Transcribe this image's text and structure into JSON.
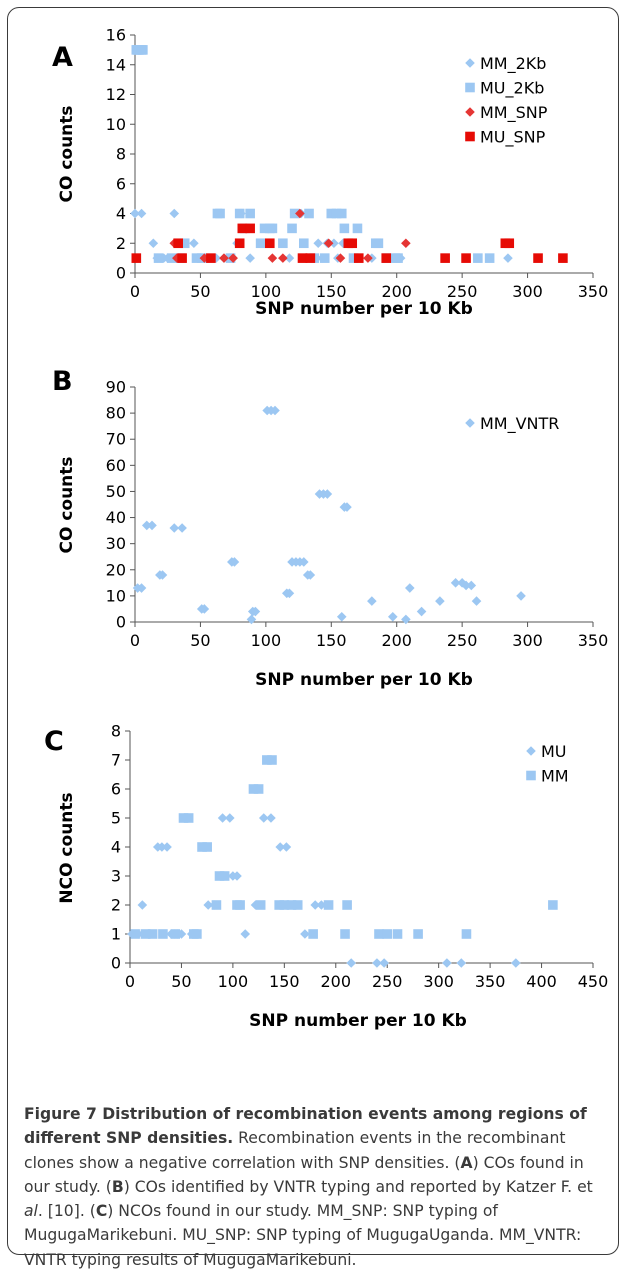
{
  "chart_data": [
    {
      "panel_label": "A",
      "type": "scatter",
      "xlabel": "SNP number per 10 Kb",
      "ylabel": "CO counts",
      "xlim": [
        0,
        350
      ],
      "ylim": [
        0,
        16
      ],
      "xticks": [
        0,
        50,
        100,
        150,
        200,
        250,
        300,
        350
      ],
      "yticks": [
        0,
        2,
        4,
        6,
        8,
        10,
        12,
        14,
        16
      ],
      "legend_position": "top-right",
      "series": [
        {
          "name": "MM_2Kb",
          "marker": "diamond",
          "color": "#9cc7f2",
          "points": [
            [
              0,
              4
            ],
            [
              5,
              4
            ],
            [
              14,
              2
            ],
            [
              17,
              1
            ],
            [
              22,
              1
            ],
            [
              25,
              1
            ],
            [
              30,
              4
            ],
            [
              45,
              2
            ],
            [
              55,
              1
            ],
            [
              62,
              1
            ],
            [
              68,
              1
            ],
            [
              72,
              1
            ],
            [
              78,
              2
            ],
            [
              81,
              4
            ],
            [
              88,
              1
            ],
            [
              118,
              1
            ],
            [
              127,
              4
            ],
            [
              140,
              2
            ],
            [
              143,
              1
            ],
            [
              147,
              2
            ],
            [
              152,
              2
            ],
            [
              155,
              1
            ],
            [
              159,
              2
            ],
            [
              162,
              2
            ],
            [
              168,
              1
            ],
            [
              181,
              1
            ],
            [
              197,
              1
            ],
            [
              203,
              1
            ],
            [
              285,
              1
            ]
          ]
        },
        {
          "name": "MU_2Kb",
          "marker": "square",
          "color": "#9cc7f2",
          "points": [
            [
              1,
              15
            ],
            [
              2,
              15
            ],
            [
              3,
              15
            ],
            [
              5,
              15
            ],
            [
              6,
              15
            ],
            [
              18,
              1
            ],
            [
              28,
              1
            ],
            [
              35,
              1
            ],
            [
              38,
              2
            ],
            [
              47,
              1
            ],
            [
              51,
              1
            ],
            [
              63,
              4
            ],
            [
              65,
              4
            ],
            [
              73,
              1
            ],
            [
              80,
              4
            ],
            [
              84,
              3
            ],
            [
              88,
              4
            ],
            [
              96,
              2
            ],
            [
              99,
              3
            ],
            [
              103,
              3
            ],
            [
              105,
              3
            ],
            [
              113,
              2
            ],
            [
              120,
              3
            ],
            [
              122,
              4
            ],
            [
              129,
              2
            ],
            [
              133,
              4
            ],
            [
              137,
              1
            ],
            [
              145,
              1
            ],
            [
              150,
              4
            ],
            [
              154,
              4
            ],
            [
              158,
              4
            ],
            [
              160,
              3
            ],
            [
              167,
              1
            ],
            [
              170,
              3
            ],
            [
              184,
              2
            ],
            [
              186,
              2
            ],
            [
              192,
              1
            ],
            [
              199,
              1
            ],
            [
              201,
              1
            ],
            [
              262,
              1
            ],
            [
              271,
              1
            ]
          ]
        },
        {
          "name": "MM_SNP",
          "marker": "diamond",
          "color": "#e53534",
          "points": [
            [
              30,
              2
            ],
            [
              32,
              1
            ],
            [
              53,
              1
            ],
            [
              68,
              1
            ],
            [
              75,
              1
            ],
            [
              105,
              1
            ],
            [
              113,
              1
            ],
            [
              126,
              4
            ],
            [
              148,
              2
            ],
            [
              157,
              1
            ],
            [
              178,
              1
            ],
            [
              207,
              2
            ]
          ]
        },
        {
          "name": "MU_SNP",
          "marker": "square",
          "color": "#e60b05",
          "points": [
            [
              1,
              1
            ],
            [
              33,
              2
            ],
            [
              36,
              1
            ],
            [
              58,
              1
            ],
            [
              80,
              2
            ],
            [
              82,
              3
            ],
            [
              88,
              3
            ],
            [
              103,
              2
            ],
            [
              128,
              1
            ],
            [
              134,
              1
            ],
            [
              163,
              2
            ],
            [
              166,
              2
            ],
            [
              171,
              1
            ],
            [
              192,
              1
            ],
            [
              237,
              1
            ],
            [
              253,
              1
            ],
            [
              283,
              2
            ],
            [
              286,
              2
            ],
            [
              308,
              1
            ],
            [
              327,
              1
            ]
          ]
        }
      ]
    },
    {
      "panel_label": "B",
      "type": "scatter",
      "xlabel": "SNP number per 10  Kb",
      "ylabel": "CO counts",
      "xlim": [
        0,
        350
      ],
      "ylim": [
        0,
        90
      ],
      "xticks": [
        0,
        50,
        100,
        150,
        200,
        250,
        300,
        350
      ],
      "yticks": [
        0,
        10,
        20,
        30,
        40,
        50,
        60,
        70,
        80,
        90
      ],
      "legend_position": "top-right",
      "series": [
        {
          "name": "MM_VNTR",
          "marker": "diamond",
          "color": "#9cc7f2",
          "points": [
            [
              2,
              13
            ],
            [
              5,
              13
            ],
            [
              9,
              37
            ],
            [
              13,
              37
            ],
            [
              19,
              18
            ],
            [
              21,
              18
            ],
            [
              30,
              36
            ],
            [
              36,
              36
            ],
            [
              51,
              5
            ],
            [
              53,
              5
            ],
            [
              74,
              23
            ],
            [
              76,
              23
            ],
            [
              89,
              1
            ],
            [
              90,
              4
            ],
            [
              92,
              4
            ],
            [
              101,
              81
            ],
            [
              104,
              81
            ],
            [
              107,
              81
            ],
            [
              116,
              11
            ],
            [
              118,
              11
            ],
            [
              120,
              23
            ],
            [
              123,
              23
            ],
            [
              126,
              23
            ],
            [
              129,
              23
            ],
            [
              132,
              18
            ],
            [
              134,
              18
            ],
            [
              141,
              49
            ],
            [
              144,
              49
            ],
            [
              147,
              49
            ],
            [
              158,
              2
            ],
            [
              160,
              44
            ],
            [
              162,
              44
            ],
            [
              181,
              8
            ],
            [
              197,
              2
            ],
            [
              207,
              1
            ],
            [
              210,
              13
            ],
            [
              219,
              4
            ],
            [
              233,
              8
            ],
            [
              245,
              15
            ],
            [
              250,
              15
            ],
            [
              253,
              14
            ],
            [
              257,
              14
            ],
            [
              261,
              8
            ],
            [
              295,
              10
            ]
          ]
        }
      ]
    },
    {
      "panel_label": "C",
      "type": "scatter",
      "xlabel": "SNP number per 10 Kb",
      "ylabel": "NCO counts",
      "xlim": [
        0,
        450
      ],
      "ylim": [
        0,
        8
      ],
      "xticks": [
        0,
        50,
        100,
        150,
        200,
        250,
        300,
        350,
        400,
        450
      ],
      "yticks": [
        0,
        1,
        2,
        3,
        4,
        5,
        6,
        7,
        8
      ],
      "legend_position": "top-right",
      "series": [
        {
          "name": "MU",
          "marker": "diamond",
          "color": "#9cc7f2",
          "points": [
            [
              2,
              1
            ],
            [
              8,
              1
            ],
            [
              12,
              2
            ],
            [
              20,
              1
            ],
            [
              27,
              4
            ],
            [
              31,
              4
            ],
            [
              36,
              4
            ],
            [
              40,
              1
            ],
            [
              43,
              1
            ],
            [
              46,
              1
            ],
            [
              50,
              1
            ],
            [
              60,
              1
            ],
            [
              76,
              2
            ],
            [
              82,
              2
            ],
            [
              90,
              5
            ],
            [
              97,
              5
            ],
            [
              100,
              3
            ],
            [
              104,
              3
            ],
            [
              112,
              1
            ],
            [
              122,
              2
            ],
            [
              130,
              5
            ],
            [
              137,
              5
            ],
            [
              146,
              4
            ],
            [
              152,
              4
            ],
            [
              170,
              1
            ],
            [
              180,
              2
            ],
            [
              186,
              2
            ],
            [
              215,
              0
            ],
            [
              240,
              0
            ],
            [
              247,
              0
            ],
            [
              308,
              0
            ],
            [
              322,
              0
            ],
            [
              375,
              0
            ]
          ]
        },
        {
          "name": "MM",
          "marker": "square",
          "color": "#9cc7f2",
          "points": [
            [
              5,
              1
            ],
            [
              15,
              1
            ],
            [
              22,
              1
            ],
            [
              32,
              1
            ],
            [
              44,
              1
            ],
            [
              52,
              5
            ],
            [
              57,
              5
            ],
            [
              62,
              1
            ],
            [
              65,
              1
            ],
            [
              70,
              4
            ],
            [
              75,
              4
            ],
            [
              84,
              2
            ],
            [
              87,
              3
            ],
            [
              92,
              3
            ],
            [
              104,
              2
            ],
            [
              107,
              2
            ],
            [
              120,
              6
            ],
            [
              125,
              6
            ],
            [
              127,
              2
            ],
            [
              133,
              7
            ],
            [
              138,
              7
            ],
            [
              145,
              2
            ],
            [
              150,
              2
            ],
            [
              157,
              2
            ],
            [
              163,
              2
            ],
            [
              178,
              1
            ],
            [
              193,
              2
            ],
            [
              209,
              1
            ],
            [
              211,
              2
            ],
            [
              242,
              1
            ],
            [
              250,
              1
            ],
            [
              260,
              1
            ],
            [
              280,
              1
            ],
            [
              327,
              1
            ],
            [
              411,
              2
            ]
          ]
        }
      ]
    }
  ],
  "caption": {
    "title": "Figure 7 Distribution of recombination events among regions of different SNP densities.",
    "body_1": " Recombination events in the recombinant clones show a negative correlation with SNP densities. (",
    "ref_a": "A",
    "body_2": ") COs found in our study. (",
    "ref_b": "B",
    "body_3": ") COs identified by VNTR typing and reported by Katzer F. et ",
    "al": "al",
    "body_4": ". [10]. (",
    "ref_c": "C",
    "body_5": ") NCOs found in our study. MM_SNP: SNP typing of MugugaMarikebuni. MU_SNP: SNP typing of MugugaUganda. MM_VNTR: VNTR typing results of MugugaMarikebuni."
  }
}
